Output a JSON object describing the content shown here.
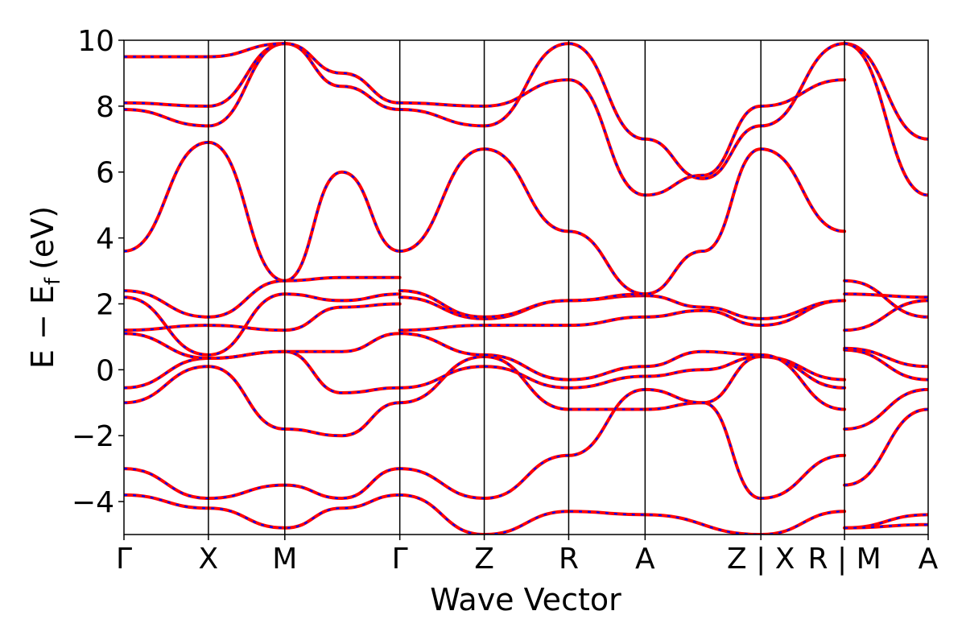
{
  "chart_data": {
    "type": "line",
    "title": "",
    "xlabel": "Wave Vector",
    "ylabel": {
      "main": "E − E",
      "sub": "f",
      "unit": "(eV)"
    },
    "ylim": [
      -5,
      10
    ],
    "yticks": [
      -4,
      -2,
      0,
      2,
      4,
      6,
      8,
      10
    ],
    "ytick_labels": [
      "−4",
      "−2",
      "0",
      "2",
      "4",
      "6",
      "8",
      "10"
    ],
    "xlim": [
      0,
      1
    ],
    "kpoints": [
      {
        "label": "Γ",
        "x": 0.0
      },
      {
        "label": "X",
        "x": 0.105
      },
      {
        "label": "M",
        "x": 0.2
      },
      {
        "label": "Γ",
        "x": 0.343
      },
      {
        "label": "Z",
        "x": 0.448
      },
      {
        "label": "R",
        "x": 0.553
      },
      {
        "label": "A",
        "x": 0.648
      },
      {
        "label": "Z | X",
        "x": 0.792
      },
      {
        "label": "R | M",
        "x": 0.896
      },
      {
        "label": "A",
        "x": 1.0
      }
    ],
    "grid": false,
    "legend": "none",
    "series_style": [
      {
        "color": "#ff0000",
        "style": "solid"
      },
      {
        "color": "#0000ff",
        "style": "dashed"
      }
    ],
    "bands": [
      {
        "x": [
          0,
          0.105,
          0.2,
          0.271,
          0.343
        ],
        "y": [
          -1.0,
          0.1,
          -1.8,
          -2.0,
          -1.0
        ]
      },
      {
        "x": [
          0,
          0.105,
          0.2,
          0.271,
          0.343
        ],
        "y": [
          -0.55,
          0.35,
          0.55,
          -0.7,
          -0.55
        ]
      },
      {
        "x": [
          0,
          0.105,
          0.2,
          0.271,
          0.343
        ],
        "y": [
          1.1,
          0.35,
          0.55,
          0.55,
          1.1
        ]
      },
      {
        "x": [
          0,
          0.105,
          0.2,
          0.271,
          0.343
        ],
        "y": [
          1.2,
          1.35,
          1.2,
          1.9,
          2.0
        ]
      },
      {
        "x": [
          0,
          0.105,
          0.2,
          0.271,
          0.343
        ],
        "y": [
          2.2,
          0.45,
          2.3,
          2.1,
          2.3
        ]
      },
      {
        "x": [
          0,
          0.105,
          0.2,
          0.271,
          0.343
        ],
        "y": [
          2.4,
          1.6,
          2.7,
          2.8,
          2.8
        ]
      },
      {
        "x": [
          0,
          0.105,
          0.2,
          0.271,
          0.343
        ],
        "y": [
          3.6,
          6.9,
          2.7,
          6.0,
          3.6
        ]
      },
      {
        "x": [
          0,
          0.105,
          0.2,
          0.271,
          0.343
        ],
        "y": [
          -3.0,
          -3.9,
          -3.5,
          -3.9,
          -3.0
        ]
      },
      {
        "x": [
          0,
          0.105,
          0.2,
          0.271,
          0.343
        ],
        "y": [
          -3.8,
          -4.2,
          -4.8,
          -4.2,
          -3.8
        ]
      },
      {
        "x": [
          0,
          0.105,
          0.2,
          0.271,
          0.343
        ],
        "y": [
          7.9,
          7.4,
          9.9,
          8.6,
          7.9
        ]
      },
      {
        "x": [
          0,
          0.105,
          0.2,
          0.271,
          0.343
        ],
        "y": [
          8.1,
          8.0,
          9.9,
          9.0,
          8.1
        ]
      },
      {
        "x": [
          0,
          0.105,
          0.2
        ],
        "y": [
          9.5,
          9.5,
          9.9
        ]
      },
      {
        "x": [
          0.343,
          0.448,
          0.553,
          0.648,
          0.72,
          0.792
        ],
        "y": [
          -1.0,
          0.4,
          -1.2,
          -1.2,
          -1.0,
          0.4
        ]
      },
      {
        "x": [
          0.343,
          0.448,
          0.553,
          0.648,
          0.72,
          0.792
        ],
        "y": [
          -0.55,
          0.1,
          -0.55,
          -0.2,
          0.0,
          0.4
        ]
      },
      {
        "x": [
          0.343,
          0.448,
          0.553,
          0.648,
          0.72,
          0.792
        ],
        "y": [
          1.1,
          0.45,
          -0.3,
          0.1,
          0.55,
          0.45
        ]
      },
      {
        "x": [
          0.343,
          0.448,
          0.553,
          0.648,
          0.72,
          0.792
        ],
        "y": [
          1.2,
          1.35,
          1.35,
          1.6,
          1.8,
          1.35
        ]
      },
      {
        "x": [
          0.343,
          0.448,
          0.553,
          0.648,
          0.72,
          0.792
        ],
        "y": [
          2.2,
          1.55,
          2.1,
          2.25,
          1.9,
          1.55
        ]
      },
      {
        "x": [
          0.343,
          0.448,
          0.553,
          0.648
        ],
        "y": [
          2.4,
          1.6,
          2.1,
          2.3
        ]
      },
      {
        "x": [
          0.343,
          0.448,
          0.553,
          0.648,
          0.72,
          0.792
        ],
        "y": [
          3.6,
          6.7,
          4.2,
          2.3,
          3.6,
          6.7
        ]
      },
      {
        "x": [
          0.343,
          0.448,
          0.553,
          0.648,
          0.72,
          0.792
        ],
        "y": [
          -3.0,
          -3.9,
          -2.6,
          -0.6,
          -1.0,
          -3.9
        ]
      },
      {
        "x": [
          0.343,
          0.448,
          0.553,
          0.648,
          0.792
        ],
        "y": [
          -3.8,
          -5.0,
          -4.3,
          -4.4,
          -5.0
        ]
      },
      {
        "x": [
          0.343,
          0.448,
          0.553,
          0.648,
          0.72,
          0.792
        ],
        "y": [
          7.9,
          7.4,
          9.9,
          7.0,
          5.8,
          7.4
        ]
      },
      {
        "x": [
          0.343,
          0.448,
          0.553,
          0.648,
          0.72,
          0.792
        ],
        "y": [
          8.1,
          8.0,
          8.8,
          5.3,
          5.9,
          8.0
        ]
      },
      {
        "x": [
          0.792,
          0.896
        ],
        "y": [
          0.4,
          -0.3
        ]
      },
      {
        "x": [
          0.792,
          0.896
        ],
        "y": [
          0.4,
          -0.55
        ]
      },
      {
        "x": [
          0.792,
          0.896
        ],
        "y": [
          0.45,
          -1.2
        ]
      },
      {
        "x": [
          0.792,
          0.896
        ],
        "y": [
          1.35,
          2.1
        ]
      },
      {
        "x": [
          0.792,
          0.896
        ],
        "y": [
          1.55,
          2.1
        ]
      },
      {
        "x": [
          0.792,
          0.896
        ],
        "y": [
          6.7,
          4.2
        ]
      },
      {
        "x": [
          0.792,
          0.896
        ],
        "y": [
          7.4,
          9.9
        ]
      },
      {
        "x": [
          0.792,
          0.896
        ],
        "y": [
          8.0,
          8.8
        ]
      },
      {
        "x": [
          0.792,
          0.896
        ],
        "y": [
          -3.9,
          -2.6
        ]
      },
      {
        "x": [
          0.792,
          0.896
        ],
        "y": [
          -5.0,
          -4.3
        ]
      },
      {
        "x": [
          0.896,
          1.0
        ],
        "y": [
          -1.8,
          -0.6
        ]
      },
      {
        "x": [
          0.896,
          1.0
        ],
        "y": [
          -3.5,
          -1.2
        ]
      },
      {
        "x": [
          0.896,
          1.0
        ],
        "y": [
          0.6,
          -0.3
        ]
      },
      {
        "x": [
          0.896,
          1.0
        ],
        "y": [
          0.65,
          0.1
        ]
      },
      {
        "x": [
          0.896,
          1.0
        ],
        "y": [
          1.2,
          2.1
        ]
      },
      {
        "x": [
          0.896,
          1.0
        ],
        "y": [
          2.3,
          2.2
        ]
      },
      {
        "x": [
          0.896,
          1.0
        ],
        "y": [
          2.7,
          1.6
        ]
      },
      {
        "x": [
          0.896,
          1.0
        ],
        "y": [
          9.9,
          7.0
        ]
      },
      {
        "x": [
          0.896,
          1.0
        ],
        "y": [
          9.9,
          5.3
        ]
      },
      {
        "x": [
          0.896,
          1.0
        ],
        "y": [
          -4.8,
          -4.4
        ]
      },
      {
        "x": [
          0.896,
          1.0
        ],
        "y": [
          -4.8,
          -4.7
        ]
      }
    ]
  }
}
